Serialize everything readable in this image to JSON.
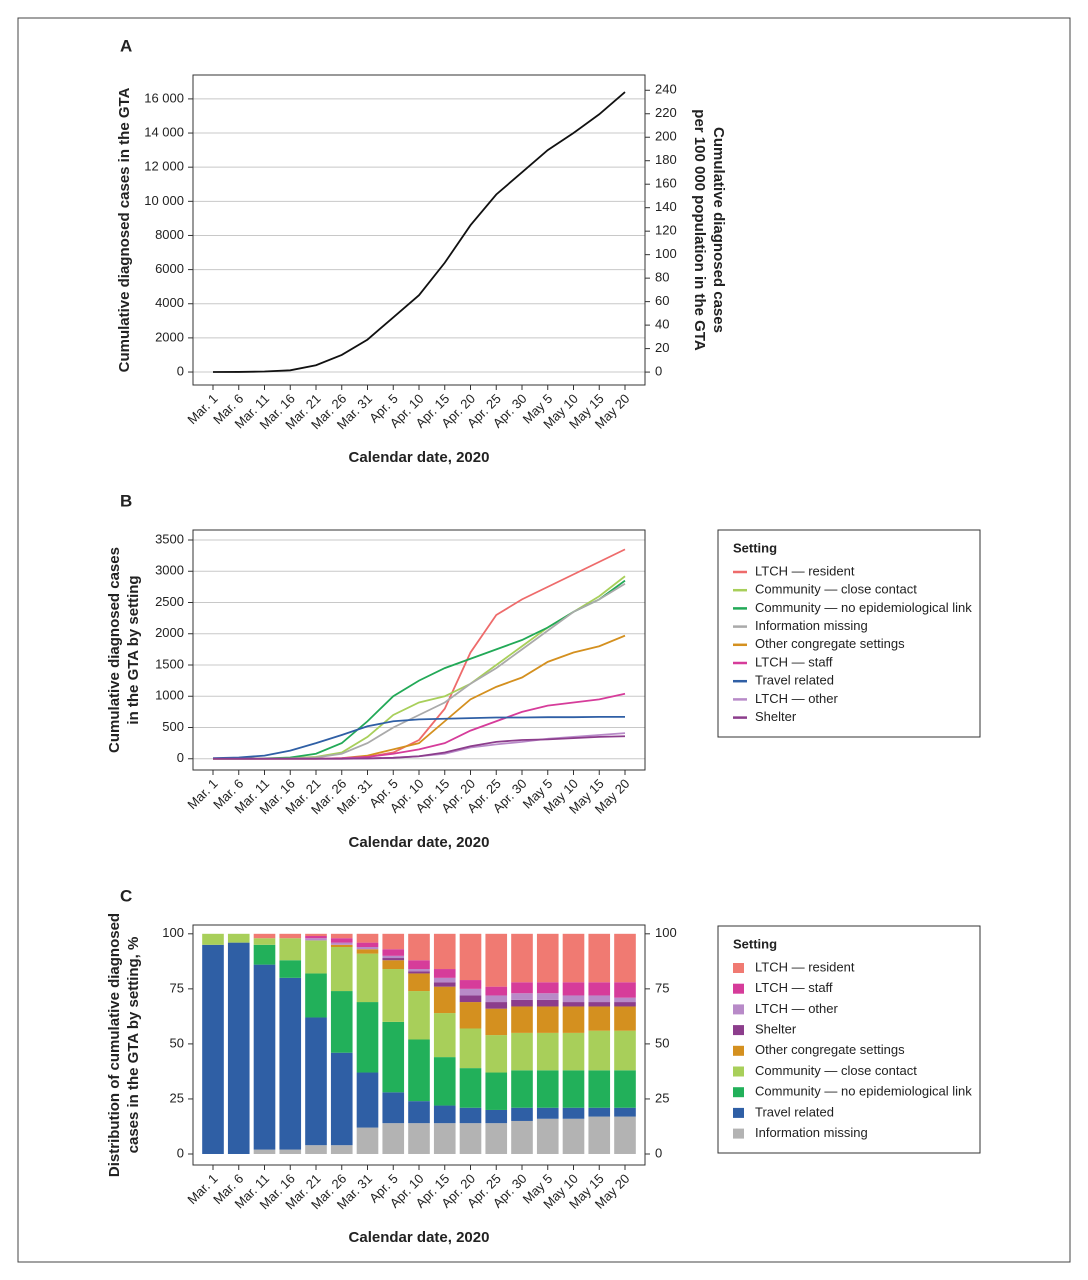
{
  "chart_data": [
    {
      "type": "line",
      "label": "A",
      "x_label": "Calendar date, 2020",
      "y_label": [
        "Cumulative diagnosed cases in the GTA"
      ],
      "y2_label": [
        "Cumulative diagnosed cases",
        "per 100 000 population in the GTA"
      ],
      "categories": [
        "Mar. 1",
        "Mar. 6",
        "Mar. 11",
        "Mar. 16",
        "Mar. 21",
        "Mar. 26",
        "Mar. 31",
        "Apr. 5",
        "Apr. 10",
        "Apr. 15",
        "Apr. 20",
        "Apr. 25",
        "Apr. 30",
        "May 5",
        "May 10",
        "May 15",
        "May 20"
      ],
      "series": [
        {
          "color": "#111111",
          "values": [
            0,
            5,
            30,
            100,
            400,
            1000,
            1900,
            3200,
            4500,
            6400,
            8600,
            10400,
            11700,
            13000,
            14000,
            15100,
            16400
          ]
        }
      ],
      "ylim": [
        -760,
        17400
      ],
      "yticks": [
        0,
        2000,
        4000,
        6000,
        8000,
        {
          "value": 10000,
          "label": "10 000"
        },
        {
          "value": 12000,
          "label": "12 000"
        },
        {
          "value": 14000,
          "label": "14 000"
        },
        {
          "value": 16000,
          "label": "16 000"
        }
      ],
      "y2lim": [
        -11,
        253
      ],
      "y2ticks": [
        0,
        20,
        40,
        60,
        80,
        100,
        120,
        140,
        160,
        180,
        200,
        220,
        240
      ],
      "grid": true
    },
    {
      "type": "line",
      "label": "B",
      "x_label": "Calendar date, 2020",
      "y_label": [
        "Cumulative diagnosed cases",
        "in the GTA by setting"
      ],
      "categories": [
        "Mar. 1",
        "Mar. 6",
        "Mar. 11",
        "Mar. 16",
        "Mar. 21",
        "Mar. 26",
        "Mar. 31",
        "Apr. 5",
        "Apr. 10",
        "Apr. 15",
        "Apr. 20",
        "Apr. 25",
        "Apr. 30",
        "May 5",
        "May 10",
        "May 15",
        "May 20"
      ],
      "legend_title": "Setting",
      "series": [
        {
          "name": "LTCH — resident",
          "color": "#ee6b6b",
          "values": [
            0,
            0,
            0,
            0,
            0,
            0,
            30,
            100,
            300,
            800,
            1700,
            2300,
            2550,
            2750,
            2950,
            3150,
            3350
          ]
        },
        {
          "name": "Community — close contact",
          "color": "#a8cf5a",
          "values": [
            0,
            0,
            0,
            10,
            30,
            100,
            350,
            700,
            900,
            1000,
            1200,
            1500,
            1800,
            2100,
            2350,
            2600,
            2920
          ]
        },
        {
          "name": "Community — no epidemiological link",
          "color": "#22a957",
          "values": [
            0,
            0,
            5,
            20,
            80,
            250,
            600,
            1000,
            1250,
            1450,
            1600,
            1750,
            1900,
            2100,
            2350,
            2550,
            2850
          ]
        },
        {
          "name": "Information missing",
          "color": "#aaaaaa",
          "values": [
            0,
            0,
            0,
            5,
            20,
            80,
            250,
            500,
            700,
            900,
            1200,
            1450,
            1750,
            2050,
            2350,
            2550,
            2800
          ]
        },
        {
          "name": "Other congregate settings",
          "color": "#d4901f",
          "values": [
            0,
            0,
            0,
            0,
            0,
            10,
            50,
            150,
            250,
            600,
            950,
            1150,
            1300,
            1550,
            1700,
            1800,
            1970
          ]
        },
        {
          "name": "LTCH — staff",
          "color": "#d63c9a",
          "values": [
            0,
            0,
            0,
            0,
            0,
            10,
            30,
            80,
            150,
            250,
            450,
            600,
            750,
            850,
            900,
            950,
            1040
          ]
        },
        {
          "name": "Travel related",
          "color": "#2f5fa5",
          "values": [
            10,
            20,
            50,
            130,
            250,
            380,
            520,
            600,
            630,
            640,
            650,
            660,
            660,
            665,
            665,
            670,
            670
          ]
        },
        {
          "name": "LTCH — other",
          "color": "#b88ac8",
          "values": [
            0,
            0,
            0,
            0,
            0,
            0,
            5,
            15,
            40,
            80,
            180,
            230,
            270,
            320,
            350,
            380,
            410
          ]
        },
        {
          "name": "Shelter",
          "color": "#8c3d8c",
          "values": [
            0,
            0,
            0,
            0,
            0,
            0,
            5,
            15,
            40,
            100,
            200,
            270,
            300,
            310,
            330,
            350,
            360
          ]
        }
      ],
      "ylim": [
        -180,
        3660
      ],
      "yticks": [
        0,
        500,
        1000,
        1500,
        2000,
        2500,
        3000,
        3500
      ],
      "grid": true
    },
    {
      "type": "stacked_bar",
      "label": "C",
      "x_label": "Calendar date, 2020",
      "y_label": [
        "Distribution of cumulative diagnosed",
        "cases in the GTA by setting, %"
      ],
      "categories": [
        "Mar. 1",
        "Mar. 6",
        "Mar. 11",
        "Mar. 16",
        "Mar. 21",
        "Mar. 26",
        "Mar. 31",
        "Apr. 5",
        "Apr. 10",
        "Apr. 15",
        "Apr. 20",
        "Apr. 25",
        "Apr. 30",
        "May 5",
        "May 10",
        "May 15",
        "May 20"
      ],
      "legend_title": "Setting",
      "series": [
        {
          "name": "LTCH — resident",
          "color": "#f07a72",
          "values": [
            0,
            0,
            2,
            2,
            1,
            2,
            4,
            7,
            12,
            16,
            21,
            24,
            22,
            22,
            22,
            22,
            22
          ]
        },
        {
          "name": "LTCH — staff",
          "color": "#d63c9a",
          "values": [
            0,
            0,
            0,
            0,
            1,
            2,
            2,
            3,
            4,
            4,
            4,
            4,
            5,
            5,
            6,
            6,
            7
          ]
        },
        {
          "name": "LTCH — other",
          "color": "#b88ac8",
          "values": [
            0,
            0,
            0,
            0,
            1,
            1,
            1,
            1,
            1,
            2,
            3,
            3,
            3,
            3,
            3,
            3,
            2
          ]
        },
        {
          "name": "Shelter",
          "color": "#8c3d8c",
          "values": [
            0,
            0,
            0,
            0,
            0,
            0,
            0,
            1,
            1,
            2,
            3,
            3,
            3,
            3,
            2,
            2,
            2
          ]
        },
        {
          "name": "Other congregate settings",
          "color": "#d4901f",
          "values": [
            0,
            0,
            0,
            0,
            0,
            1,
            2,
            4,
            8,
            12,
            12,
            12,
            12,
            12,
            12,
            11,
            11
          ]
        },
        {
          "name": "Community — close contact",
          "color": "#a8cf5a",
          "values": [
            5,
            4,
            3,
            10,
            15,
            20,
            22,
            24,
            22,
            20,
            18,
            17,
            17,
            17,
            17,
            18,
            18
          ]
        },
        {
          "name": "Community — no epidemiological link",
          "color": "#22b05a",
          "values": [
            0,
            0,
            9,
            8,
            20,
            28,
            32,
            32,
            28,
            22,
            18,
            17,
            17,
            17,
            17,
            17,
            17
          ]
        },
        {
          "name": "Travel related",
          "color": "#2f5fa5",
          "values": [
            95,
            96,
            84,
            78,
            58,
            42,
            25,
            14,
            10,
            8,
            7,
            6,
            6,
            5,
            5,
            4,
            4
          ]
        },
        {
          "name": "Information missing",
          "color": "#b3b3b3",
          "values": [
            0,
            0,
            2,
            2,
            4,
            4,
            12,
            14,
            14,
            14,
            14,
            14,
            15,
            16,
            16,
            17,
            17
          ]
        }
      ],
      "ylim": [
        -5,
        104
      ],
      "yticks": [
        0,
        25,
        50,
        75,
        100
      ],
      "y2lim": [
        -5,
        104
      ],
      "y2ticks": [
        0,
        25,
        50,
        75,
        100
      ],
      "grid": false
    }
  ]
}
